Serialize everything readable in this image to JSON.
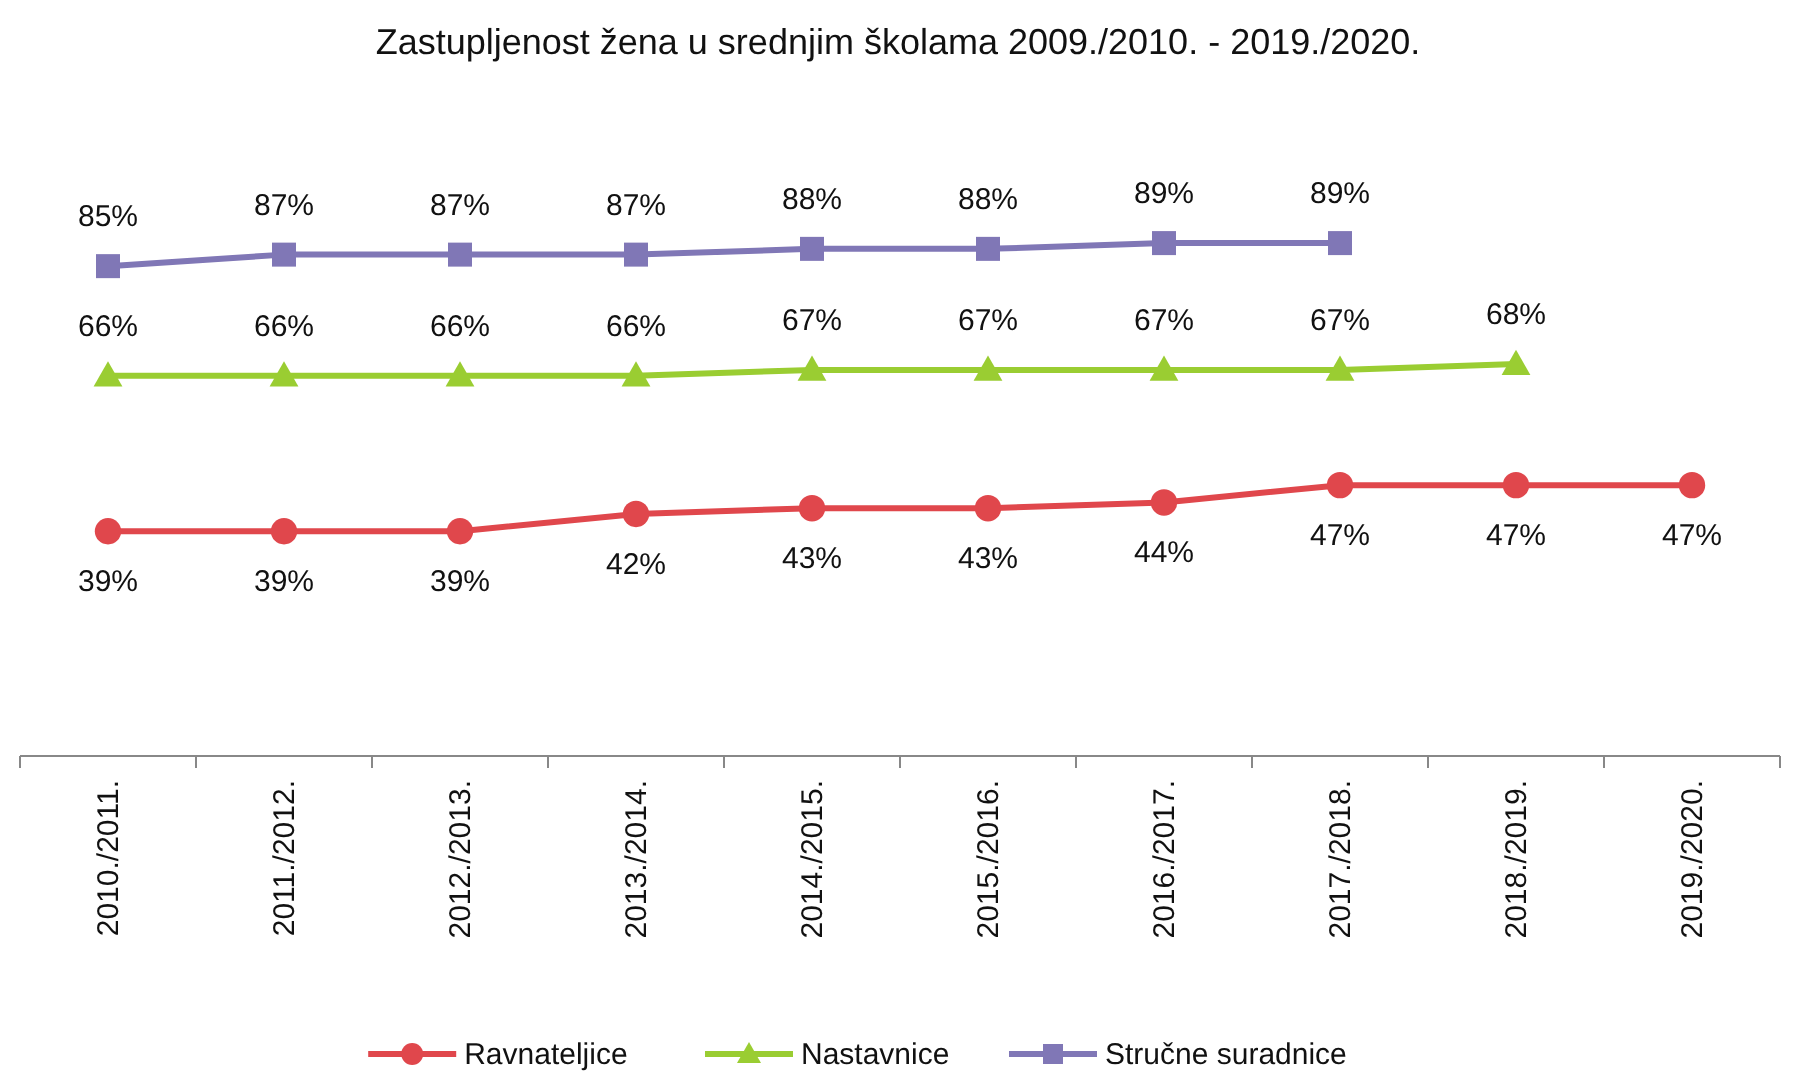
{
  "chart_data": {
    "type": "line",
    "title": "Zastupljenost žena u srednjim školama 2009./2010. - 2019./2020.",
    "categories": [
      "2010./2011.",
      "2011./2012.",
      "2012./2013.",
      "2013./2014.",
      "2014./2015.",
      "2015./2016.",
      "2016./2017.",
      "2017./2018.",
      "2018./2019.",
      "2019./2020."
    ],
    "tick_labels": "x",
    "legend": "bottom",
    "series": [
      {
        "name": "Ravnateljice",
        "color": "#e0474c",
        "marker": "circle",
        "values": [
          39,
          39,
          39,
          42,
          43,
          43,
          44,
          47,
          47,
          47
        ],
        "value_labels": [
          "39%",
          "39%",
          "39%",
          "42%",
          "43%",
          "43%",
          "44%",
          "47%",
          "47%",
          "47%"
        ]
      },
      {
        "name": "Nastavnice",
        "color": "#9acd32",
        "marker": "triangle",
        "values": [
          66,
          66,
          66,
          66,
          67,
          67,
          67,
          67,
          68,
          null
        ],
        "value_labels": [
          "66%",
          "66%",
          "66%",
          "66%",
          "67%",
          "67%",
          "67%",
          "67%",
          "68%",
          null
        ]
      },
      {
        "name": "Stručne suradnice",
        "color": "#8077b6",
        "marker": "square",
        "values": [
          85,
          87,
          87,
          87,
          88,
          88,
          89,
          89,
          null,
          null
        ],
        "value_labels": [
          "85%",
          "87%",
          "87%",
          "87%",
          "88%",
          "88%",
          "89%",
          "89%",
          null,
          null
        ]
      }
    ]
  }
}
